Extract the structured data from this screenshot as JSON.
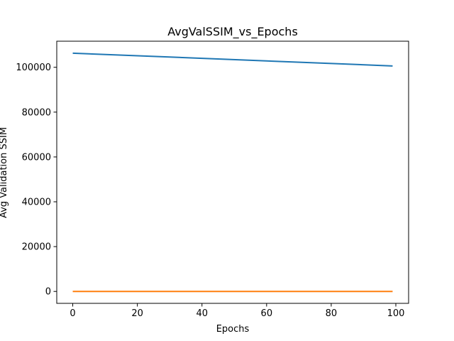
{
  "chart_data": {
    "type": "line",
    "title": "AvgValSSIM_vs_Epochs",
    "xlabel": "Epochs",
    "ylabel": "Avg Validation SSIM",
    "xlim": [
      -4.95,
      103.95
    ],
    "ylim": [
      -5320,
      111640
    ],
    "xticks": [
      0,
      20,
      40,
      60,
      80,
      100
    ],
    "yticks": [
      0,
      20000,
      40000,
      60000,
      80000,
      100000
    ],
    "grid": false,
    "series": [
      {
        "color": "#1f77b4",
        "x": [
          0,
          99
        ],
        "y": [
          106300,
          100600
        ]
      },
      {
        "color": "#ff7f0e",
        "x": [
          0,
          99
        ],
        "y": [
          0.6,
          0.6
        ]
      }
    ]
  }
}
